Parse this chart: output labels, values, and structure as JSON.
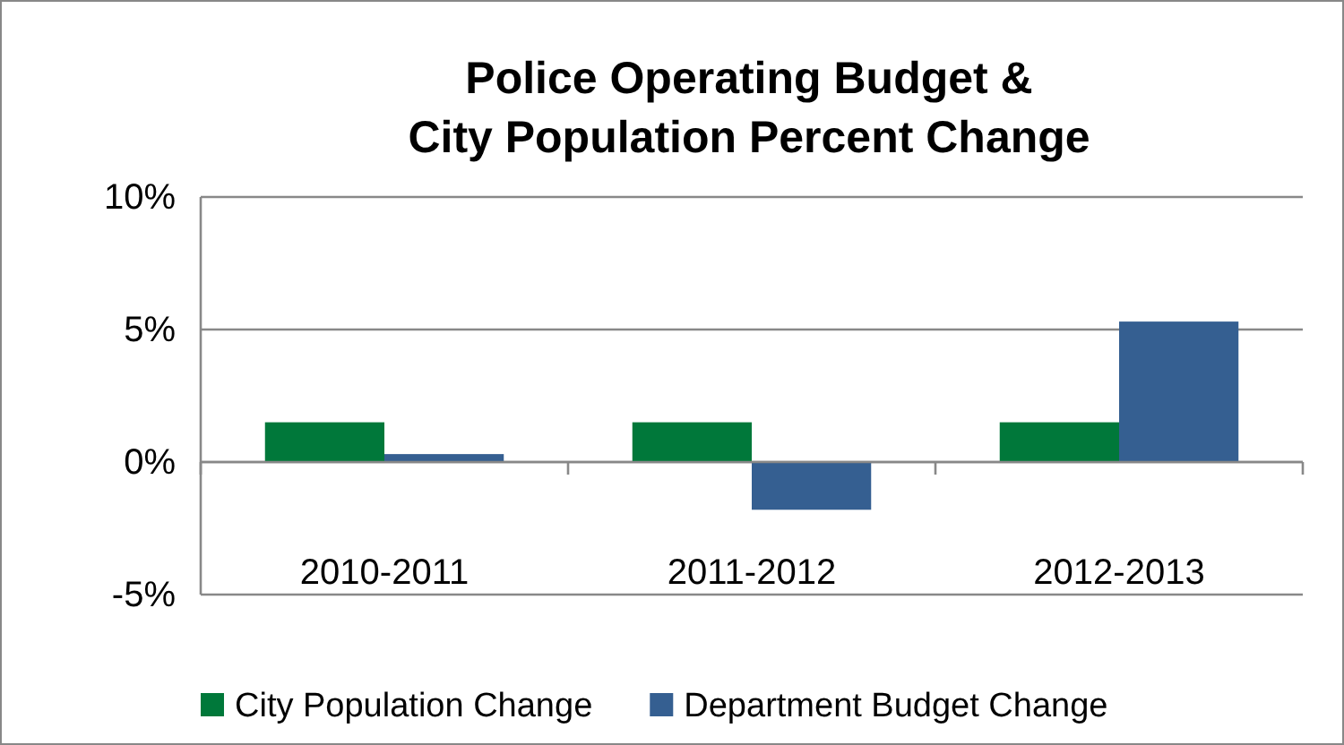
{
  "chart_data": {
    "type": "bar",
    "title": "Police Operating Budget &\nCity Population Percent Change",
    "categories": [
      "2010-2011",
      "2011-2012",
      "2012-2013"
    ],
    "series": [
      {
        "name": "City Population Change",
        "color": "#00783a",
        "values": [
          1.5,
          1.5,
          1.5
        ]
      },
      {
        "name": "Department Budget Change",
        "color": "#355f91",
        "values": [
          0.3,
          -1.8,
          5.3
        ]
      }
    ],
    "ylim": [
      -5,
      10
    ],
    "yticks": [
      {
        "value": -5,
        "label": "-5%"
      },
      {
        "value": 0,
        "label": "0%"
      },
      {
        "value": 5,
        "label": "5%"
      },
      {
        "value": 10,
        "label": "10%"
      }
    ],
    "grid": "y",
    "legend": "bottom"
  }
}
